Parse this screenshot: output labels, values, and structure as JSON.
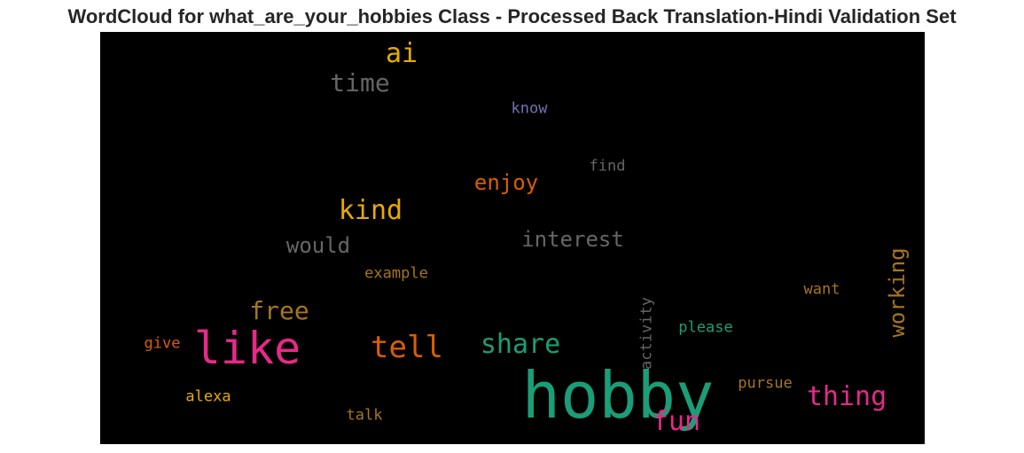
{
  "title": "WordCloud for what_are_your_hobbies Class - Processed Back Translation-Hindi Validation Set",
  "chart_data": {
    "type": "wordcloud",
    "background": "#000000",
    "words": [
      {
        "text": "hobby",
        "color": "#1b9e77",
        "orientation": "horizontal"
      },
      {
        "text": "like",
        "color": "#e7298a",
        "orientation": "horizontal"
      },
      {
        "text": "tell",
        "color": "#d95f02",
        "orientation": "horizontal"
      },
      {
        "text": "share",
        "color": "#1b9e77",
        "orientation": "horizontal"
      },
      {
        "text": "thing",
        "color": "#e7298a",
        "orientation": "horizontal"
      },
      {
        "text": "fun",
        "color": "#e7298a",
        "orientation": "horizontal"
      },
      {
        "text": "kind",
        "color": "#e6ab02",
        "orientation": "horizontal"
      },
      {
        "text": "free",
        "color": "#a6761d",
        "orientation": "horizontal"
      },
      {
        "text": "ai",
        "color": "#e6ab02",
        "orientation": "horizontal"
      },
      {
        "text": "time",
        "color": "#666666",
        "orientation": "horizontal"
      },
      {
        "text": "interest",
        "color": "#666666",
        "orientation": "horizontal"
      },
      {
        "text": "would",
        "color": "#666666",
        "orientation": "horizontal"
      },
      {
        "text": "enjoy",
        "color": "#d95f02",
        "orientation": "horizontal"
      },
      {
        "text": "working",
        "color": "#a6761d",
        "orientation": "vertical"
      },
      {
        "text": "activity",
        "color": "#666666",
        "orientation": "vertical"
      },
      {
        "text": "know",
        "color": "#7570b3",
        "orientation": "horizontal"
      },
      {
        "text": "find",
        "color": "#666666",
        "orientation": "horizontal"
      },
      {
        "text": "example",
        "color": "#a6761d",
        "orientation": "horizontal"
      },
      {
        "text": "want",
        "color": "#a6761d",
        "orientation": "horizontal"
      },
      {
        "text": "please",
        "color": "#1b9e77",
        "orientation": "horizontal"
      },
      {
        "text": "give",
        "color": "#d95f02",
        "orientation": "horizontal"
      },
      {
        "text": "alexa",
        "color": "#e6ab02",
        "orientation": "horizontal"
      },
      {
        "text": "talk",
        "color": "#a6761d",
        "orientation": "horizontal"
      },
      {
        "text": "pursue",
        "color": "#a6761d",
        "orientation": "horizontal"
      }
    ]
  }
}
